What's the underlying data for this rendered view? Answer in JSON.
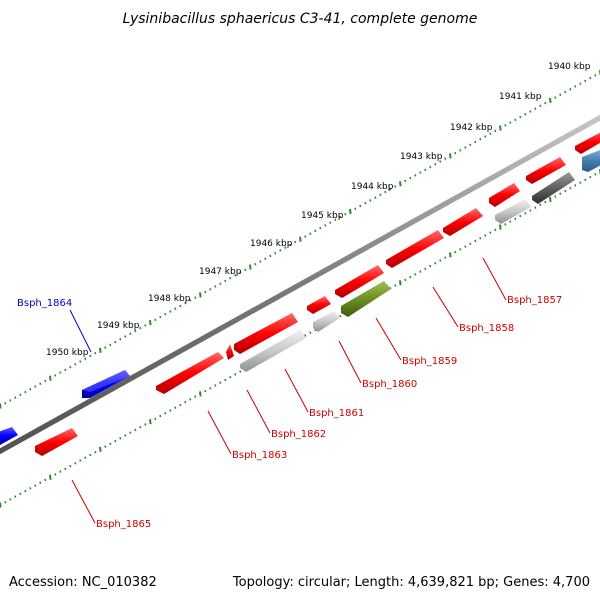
{
  "title": "Lysinibacillus sphaericus C3-41, complete genome",
  "footer": {
    "accession": "Accession: NC_010382",
    "topology": "Topology: circular; Length: 4,639,821 bp; Genes: 4,700"
  },
  "colors": {
    "backbone": "#808080",
    "ticks": "#2e8b2e",
    "label_forward": "#0000cc",
    "label_reverse": "#cc0000"
  },
  "kbp_labels": [
    "1940 kbp",
    "1941 kbp",
    "1942 kbp",
    "1943 kbp",
    "1944 kbp",
    "1945 kbp",
    "1946 kbp",
    "1947 kbp",
    "1948 kbp",
    "1949 kbp",
    "1950 kbp"
  ],
  "gene_labels": [
    {
      "text": "Bsph_1864",
      "strand": "forward"
    },
    {
      "text": "Bsph_1857",
      "strand": "reverse"
    },
    {
      "text": "Bsph_1858",
      "strand": "reverse"
    },
    {
      "text": "Bsph_1859",
      "strand": "reverse"
    },
    {
      "text": "Bsph_1860",
      "strand": "reverse"
    },
    {
      "text": "Bsph_1861",
      "strand": "reverse"
    },
    {
      "text": "Bsph_1862",
      "strand": "reverse"
    },
    {
      "text": "Bsph_1863",
      "strand": "reverse"
    },
    {
      "text": "Bsph_1865",
      "strand": "reverse"
    }
  ]
}
